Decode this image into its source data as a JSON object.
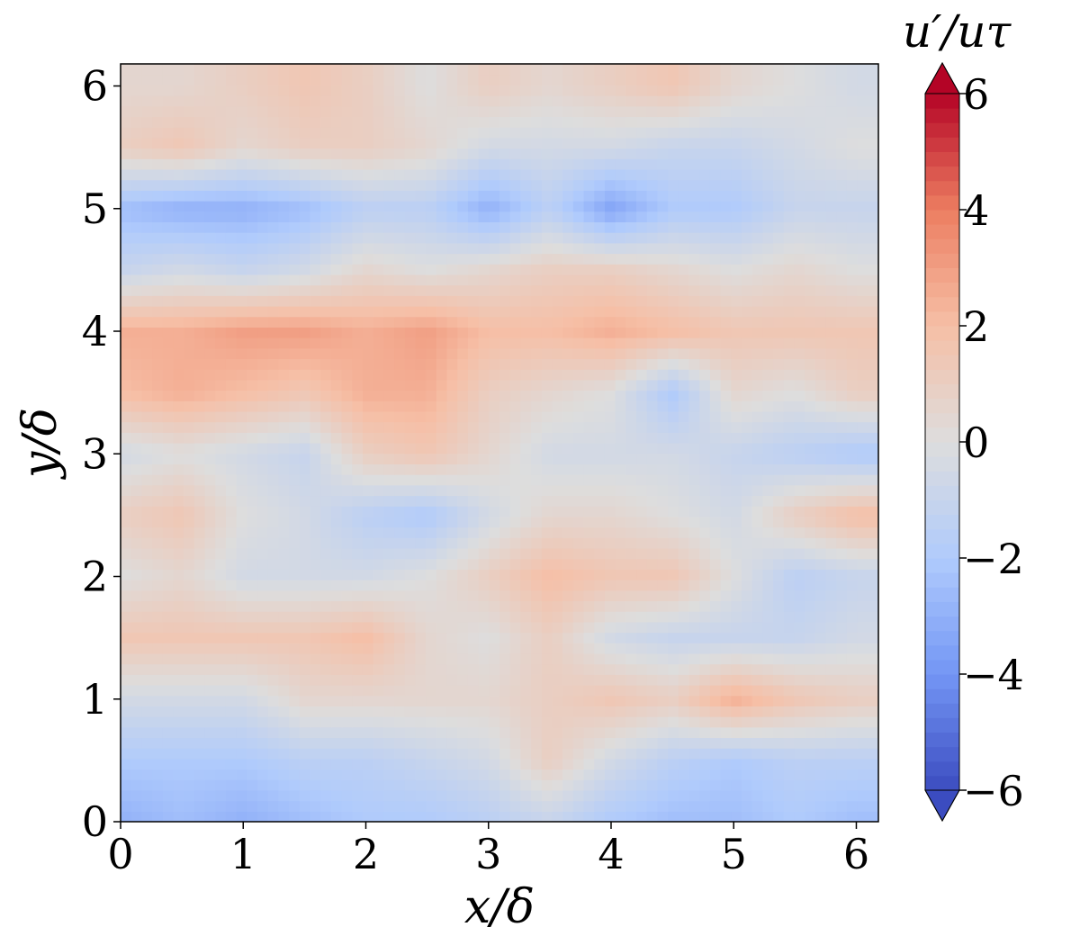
{
  "chart_data": {
    "type": "heatmap",
    "title": "",
    "xlabel": "x/δ",
    "ylabel": "y/δ",
    "colorbar_label": "u′/uτ",
    "xlim": [
      0,
      6.18
    ],
    "ylim": [
      0,
      6.18
    ],
    "x_ticks": [
      0,
      1,
      2,
      3,
      4,
      5,
      6
    ],
    "y_ticks": [
      0,
      1,
      2,
      3,
      4,
      5,
      6
    ],
    "x_tick_labels": [
      "0",
      "1",
      "2",
      "3",
      "4",
      "5",
      "6"
    ],
    "y_tick_labels": [
      "0",
      "1",
      "2",
      "3",
      "4",
      "5",
      "6"
    ],
    "colorbar_range": [
      -6,
      6
    ],
    "colorbar_ticks": [
      -6,
      -4,
      -2,
      0,
      2,
      4,
      6
    ],
    "colorbar_tick_labels": [
      "−6",
      "−4",
      "−2",
      "0",
      "2",
      "4",
      "6"
    ],
    "colorbar_extend": "both",
    "colormap": "coolwarm",
    "colormap_stops": [
      "#3b4cc0",
      "#7396f5",
      "#b0cbfc",
      "#dddddd",
      "#f6bfa6",
      "#ec7e61",
      "#b40426"
    ],
    "x": [
      0.0,
      0.5,
      1.0,
      1.5,
      2.0,
      2.5,
      3.0,
      3.5,
      4.0,
      4.5,
      5.0,
      5.5,
      6.0
    ],
    "y": [
      0.0,
      0.5,
      1.0,
      1.5,
      2.0,
      2.5,
      3.0,
      3.5,
      4.0,
      4.5,
      5.0,
      5.5,
      6.0
    ],
    "z": [
      [
        -3.0,
        -2.5,
        -3.0,
        -2.5,
        -2.0,
        -2.0,
        -1.5,
        -1.0,
        -2.0,
        -2.5,
        -2.5,
        -2.0,
        -2.5
      ],
      [
        -2.0,
        -2.0,
        -2.0,
        -1.5,
        -1.5,
        -1.0,
        -0.5,
        1.0,
        -0.5,
        -1.5,
        -2.0,
        -1.5,
        -1.5
      ],
      [
        -0.5,
        -0.5,
        -0.5,
        0.5,
        0.5,
        0.5,
        0.5,
        1.0,
        1.5,
        1.0,
        2.5,
        1.5,
        1.0
      ],
      [
        1.5,
        1.5,
        1.5,
        1.5,
        2.0,
        0.5,
        0.0,
        1.0,
        -0.5,
        -1.0,
        -1.0,
        -1.0,
        -0.5
      ],
      [
        0.0,
        0.5,
        -0.5,
        -0.5,
        -0.5,
        0.0,
        1.0,
        2.0,
        1.5,
        1.5,
        0.0,
        -1.5,
        -1.0
      ],
      [
        1.0,
        1.5,
        0.0,
        -0.5,
        -1.5,
        -2.0,
        -0.5,
        0.5,
        0.5,
        0.0,
        -0.5,
        1.0,
        2.0
      ],
      [
        -0.5,
        0.0,
        -0.5,
        -1.0,
        1.0,
        1.5,
        0.5,
        -0.5,
        -0.5,
        -0.5,
        -1.0,
        -1.5,
        -2.0
      ],
      [
        2.0,
        2.5,
        2.0,
        1.5,
        2.5,
        2.5,
        1.0,
        0.5,
        0.0,
        -2.0,
        0.5,
        0.0,
        1.0
      ],
      [
        2.5,
        2.5,
        3.0,
        3.0,
        2.5,
        3.0,
        2.0,
        2.0,
        2.5,
        2.0,
        1.5,
        1.5,
        1.5
      ],
      [
        -1.0,
        -0.5,
        -1.0,
        -0.5,
        0.5,
        0.0,
        0.5,
        1.0,
        1.0,
        0.5,
        0.0,
        0.5,
        0.0
      ],
      [
        -2.5,
        -3.0,
        -3.0,
        -2.5,
        -1.5,
        -1.5,
        -3.0,
        -1.5,
        -3.5,
        -2.0,
        -2.0,
        -1.0,
        -1.0
      ],
      [
        1.0,
        1.5,
        0.5,
        1.0,
        1.0,
        0.5,
        -0.5,
        -0.5,
        -0.5,
        -1.0,
        -1.0,
        -0.5,
        0.0
      ],
      [
        0.5,
        0.5,
        1.0,
        1.5,
        1.0,
        0.0,
        1.0,
        0.5,
        1.0,
        1.5,
        0.5,
        0.0,
        -0.5
      ]
    ]
  }
}
